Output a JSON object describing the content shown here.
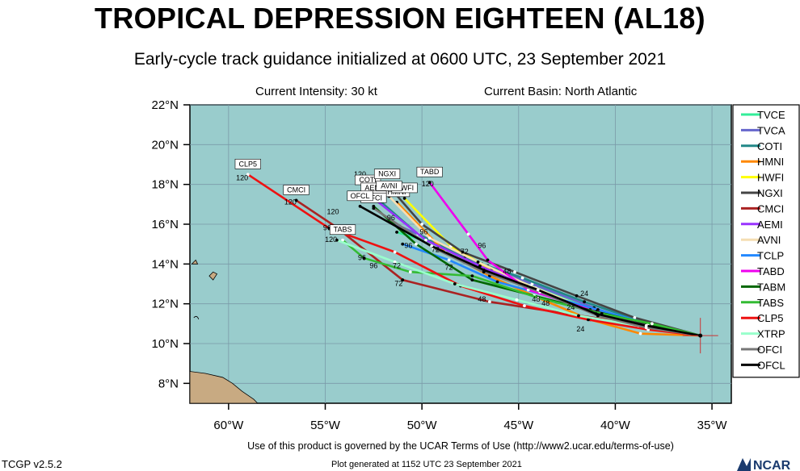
{
  "header": {
    "title": "TROPICAL DEPRESSION EIGHTEEN (AL18)",
    "subtitle": "Early-cycle track guidance initialized at 0600 UTC, 23 September 2021",
    "current_intensity": "Current Intensity: 30 kt",
    "current_basin": "Current Basin: North Atlantic"
  },
  "footer": {
    "terms": "Use of this product is governed by the UCAR Terms of Use (http://www2.ucar.edu/terms-of-use)",
    "version": "TCGP v2.5.2",
    "generated": "Plot generated at 1152 UTC   23 September 2021",
    "logo_text": "NCAR"
  },
  "colors": {
    "ocean": "#99cccc",
    "land": "#c8aa82"
  },
  "chart_data": {
    "type": "line",
    "title": "TROPICAL DEPRESSION EIGHTEEN (AL18)",
    "xlim": [
      -62,
      -34
    ],
    "ylim": [
      7,
      22
    ],
    "x_ticks": [
      -60,
      -55,
      -50,
      -45,
      -40,
      -35
    ],
    "x_tick_labels": [
      "60°W",
      "55°W",
      "50°W",
      "45°W",
      "40°W",
      "35°W"
    ],
    "y_ticks": [
      8,
      10,
      12,
      14,
      16,
      18,
      20,
      22
    ],
    "y_tick_labels": [
      "8°N",
      "10°N",
      "12°N",
      "14°N",
      "16°N",
      "18°N",
      "20°N",
      "22°N"
    ],
    "grid": true,
    "legend_position": "right",
    "initial_position": [
      -35.6,
      10.4
    ],
    "series": [
      {
        "name": "TVCE",
        "color": "#33ee99",
        "lon": [
          -35.6,
          -38.3,
          -40.9,
          -44.1,
          -46.6,
          -48.9,
          -51.3
        ],
        "lat": [
          10.4,
          10.8,
          11.6,
          12.8,
          13.9,
          14.9,
          15.6
        ],
        "label": ""
      },
      {
        "name": "TVCA",
        "color": "#6666cc",
        "lon": [
          -35.6,
          -38.4,
          -41.1,
          -44.3,
          -46.9,
          -49.3,
          -51.6
        ],
        "lat": [
          10.4,
          10.9,
          11.8,
          13.0,
          14.0,
          15.1,
          16.1
        ],
        "label": ""
      },
      {
        "name": "COTI",
        "color": "#228888",
        "lon": [
          -35.6,
          -38.6,
          -41.6,
          -44.8,
          -47.8,
          -50.2,
          -52.8
        ],
        "lat": [
          10.4,
          11.1,
          12.1,
          13.3,
          14.3,
          15.5,
          17.7
        ],
        "label": "COTI"
      },
      {
        "name": "HMNI",
        "color": "#ff8800",
        "lon": [
          -35.6,
          -38.7,
          -41.3,
          -44.0,
          -46.5,
          -48.8,
          -51.3
        ],
        "lat": [
          10.4,
          10.5,
          11.2,
          12.3,
          13.4,
          14.6,
          17.1
        ],
        "label": "HMNI"
      },
      {
        "name": "HWFI",
        "color": "#ffff00",
        "lon": [
          -35.6,
          -38.4,
          -40.8,
          -43.9,
          -46.4,
          -48.5,
          -50.9
        ],
        "lat": [
          10.4,
          10.8,
          11.5,
          12.6,
          13.7,
          14.9,
          17.3
        ],
        "label": "HWFI"
      },
      {
        "name": "NGXI",
        "color": "#444444",
        "lon": [
          -35.6,
          -39.0,
          -42.0,
          -45.2,
          -47.9,
          -50.0,
          -51.8
        ],
        "lat": [
          10.4,
          11.3,
          12.4,
          13.6,
          14.6,
          16.0,
          18.0
        ],
        "label": "NGXI"
      },
      {
        "name": "CMCI",
        "color": "#aa2222",
        "lon": [
          -35.6,
          -39.0,
          -42.5,
          -46.5,
          -51.0,
          -54.5,
          -56.5
        ],
        "lat": [
          10.4,
          11.0,
          11.5,
          12.1,
          13.2,
          15.9,
          17.2
        ],
        "label": "CMCI"
      },
      {
        "name": "AEMI",
        "color": "#9933ff",
        "lon": [
          -35.6,
          -38.5,
          -41.3,
          -44.3,
          -47.0,
          -49.8,
          -52.5
        ],
        "lat": [
          10.4,
          10.9,
          11.6,
          12.8,
          13.9,
          15.2,
          17.3
        ],
        "label": "AEMI"
      },
      {
        "name": "AVNI",
        "color": "#f5deb3",
        "lon": [
          -35.6,
          -38.5,
          -41.3,
          -44.4,
          -47.1,
          -49.6,
          -51.7
        ],
        "lat": [
          10.4,
          10.9,
          11.7,
          12.9,
          14.1,
          15.3,
          17.4
        ],
        "label": "AVNI"
      },
      {
        "name": "TCLP",
        "color": "#2288ff",
        "lon": [
          -35.6,
          -38.3,
          -40.9,
          -43.5,
          -46.1,
          -48.6,
          -51.0
        ],
        "lat": [
          10.4,
          11.0,
          11.7,
          12.4,
          13.1,
          14.2,
          15.0
        ],
        "label": ""
      },
      {
        "name": "TABD",
        "color": "#ee00ee",
        "lon": [
          -35.6,
          -38.3,
          -41.3,
          -44.5,
          -46.6,
          -47.6,
          -49.6
        ],
        "lat": [
          10.4,
          10.9,
          11.7,
          12.7,
          14.2,
          15.5,
          18.1
        ],
        "label": "TABD"
      },
      {
        "name": "TABM",
        "color": "#006600",
        "lon": [
          -35.6,
          -38.3,
          -41.0,
          -44.2,
          -47.4,
          -50.3,
          -52.5
        ],
        "lat": [
          10.4,
          11.0,
          11.6,
          12.4,
          13.2,
          15.0,
          16.9
        ],
        "label": "TABM"
      },
      {
        "name": "TABS",
        "color": "#33bb33",
        "lon": [
          -35.6,
          -38.1,
          -40.7,
          -44.0,
          -47.4,
          -50.6,
          -53.0,
          -54.1
        ],
        "lat": [
          10.4,
          11.0,
          11.5,
          12.3,
          13.4,
          13.6,
          14.3,
          15.2
        ],
        "label": "TABS"
      },
      {
        "name": "CLP5",
        "color": "#ee1111",
        "lon": [
          -35.6,
          -38.3,
          -41.4,
          -44.7,
          -48.0,
          -51.4,
          -54.8,
          -59.0
        ],
        "lat": [
          10.4,
          10.7,
          11.2,
          11.9,
          12.9,
          14.6,
          15.8,
          18.5
        ],
        "label": "CLP5"
      },
      {
        "name": "XTRP",
        "color": "#99ffcc",
        "lon": [
          -35.6,
          -38.8,
          -41.9,
          -45.1,
          -48.3,
          -51.4,
          -54.4
        ],
        "lat": [
          10.4,
          10.9,
          11.4,
          12.2,
          13.0,
          14.1,
          15.2
        ],
        "label": ""
      },
      {
        "name": "OFCI",
        "color": "#777777",
        "lon": [
          -35.6,
          -38.4,
          -40.9,
          -43.9,
          -46.8,
          -49.4,
          -52.5
        ],
        "lat": [
          10.4,
          10.8,
          11.4,
          12.6,
          13.6,
          14.8,
          16.8
        ],
        "label": "OFCI"
      },
      {
        "name": "OFCL",
        "color": "#000000",
        "lon": [
          -35.6,
          -38.4,
          -41.0,
          -44.0,
          -46.8,
          -49.5,
          -53.2
        ],
        "lat": [
          10.4,
          10.9,
          11.5,
          12.7,
          13.7,
          14.9,
          16.9
        ],
        "label": "OFCL"
      }
    ],
    "hour_labels": [
      {
        "text": "120",
        "lon": -59.3,
        "lat": 18.2
      },
      {
        "text": "120",
        "lon": -56.8,
        "lat": 17.0
      },
      {
        "text": "120",
        "lon": -53.2,
        "lat": 18.4
      },
      {
        "text": "120",
        "lon": -49.7,
        "lat": 17.9
      },
      {
        "text": "120",
        "lon": -52.3,
        "lat": 17.2
      },
      {
        "text": "120",
        "lon": -54.6,
        "lat": 16.5
      },
      {
        "text": "120",
        "lon": -54.7,
        "lat": 15.1
      },
      {
        "text": "96",
        "lon": -54.9,
        "lat": 15.7
      },
      {
        "text": "96",
        "lon": -51.6,
        "lat": 16.2
      },
      {
        "text": "96",
        "lon": -50.7,
        "lat": 14.8
      },
      {
        "text": "96",
        "lon": -49.9,
        "lat": 15.5
      },
      {
        "text": "96",
        "lon": -46.9,
        "lat": 14.8
      },
      {
        "text": "96",
        "lon": -53.1,
        "lat": 14.2
      },
      {
        "text": "96",
        "lon": -52.5,
        "lat": 13.8
      },
      {
        "text": "72",
        "lon": -51.3,
        "lat": 13.8
      },
      {
        "text": "72",
        "lon": -51.2,
        "lat": 12.9
      },
      {
        "text": "72",
        "lon": -48.6,
        "lat": 13.7
      },
      {
        "text": "72",
        "lon": -47.8,
        "lat": 14.5
      },
      {
        "text": "72",
        "lon": -49.3,
        "lat": 14.6
      },
      {
        "text": "48",
        "lon": -45.6,
        "lat": 13.5
      },
      {
        "text": "48",
        "lon": -46.9,
        "lat": 12.1
      },
      {
        "text": "48",
        "lon": -44.1,
        "lat": 12.1
      },
      {
        "text": "48",
        "lon": -43.6,
        "lat": 11.9
      },
      {
        "text": "24",
        "lon": -41.6,
        "lat": 12.4
      },
      {
        "text": "24",
        "lon": -42.3,
        "lat": 11.7
      },
      {
        "text": "24",
        "lon": -41.8,
        "lat": 10.6
      }
    ]
  }
}
